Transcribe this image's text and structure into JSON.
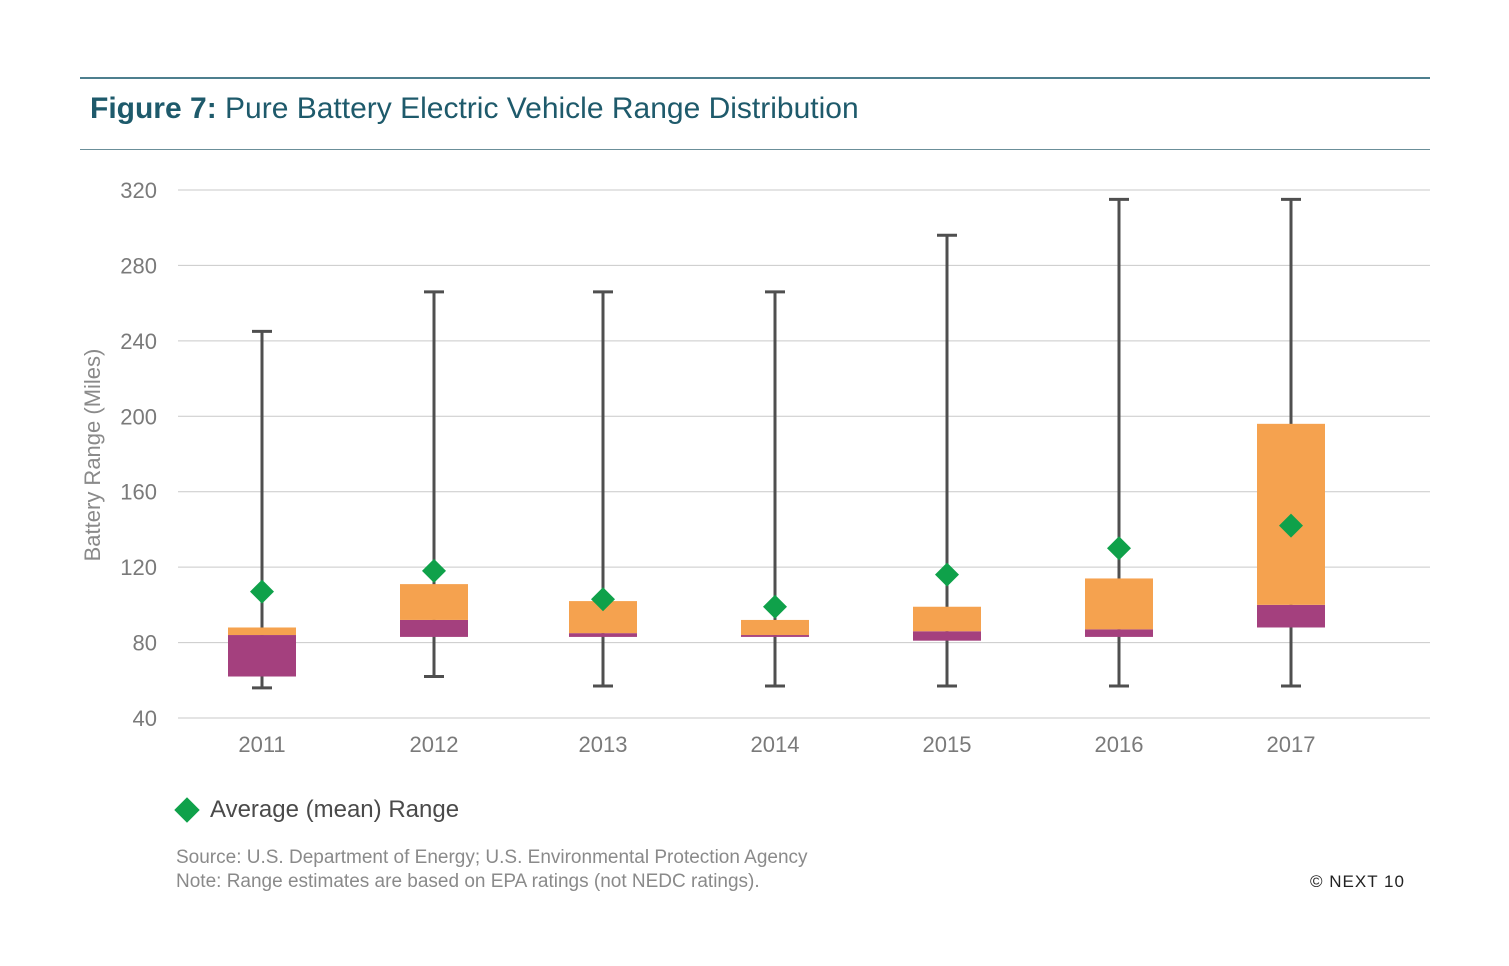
{
  "header": {
    "figure_label": "Figure 7:",
    "figure_title": "Pure Battery Electric Vehicle Range Distribution"
  },
  "legend": {
    "mean_label": "Average (mean) Range"
  },
  "notes": {
    "source": "Source: U.S. Department of Energy; U.S. Environmental Protection Agency",
    "note": "Note: Range estimates are based on EPA ratings (not NEDC ratings)."
  },
  "copyright": "© NEXT 10",
  "colors": {
    "upper_box": "#f5a24f",
    "lower_box": "#a4407e",
    "mean_marker": "#0fa14a",
    "whisker": "#4f4f4f",
    "grid": "#c9c9c9"
  },
  "chart_data": {
    "type": "box",
    "title": "Pure Battery Electric Vehicle Range Distribution",
    "ylabel": "Battery Range (Miles)",
    "xlabel": "",
    "ylim": [
      40,
      320
    ],
    "yticks": [
      40,
      80,
      120,
      160,
      200,
      240,
      280,
      320
    ],
    "grid": true,
    "legend_position": "bottom-left",
    "categories": [
      "2011",
      "2012",
      "2013",
      "2014",
      "2015",
      "2016",
      "2017"
    ],
    "series": [
      {
        "name": "Average (mean) Range",
        "values": [
          107,
          118,
          103,
          99,
          116,
          130,
          142
        ]
      }
    ],
    "boxes": [
      {
        "min": 56,
        "q1": 62,
        "median": 84,
        "q3": 88,
        "max": 245,
        "mean": 107
      },
      {
        "min": 62,
        "q1": 83,
        "median": 92,
        "q3": 111,
        "max": 266,
        "mean": 118
      },
      {
        "min": 57,
        "q1": 83,
        "median": 85,
        "q3": 102,
        "max": 266,
        "mean": 103
      },
      {
        "min": 57,
        "q1": 83,
        "median": 84,
        "q3": 92,
        "max": 266,
        "mean": 99
      },
      {
        "min": 57,
        "q1": 81,
        "median": 86,
        "q3": 99,
        "max": 296,
        "mean": 116
      },
      {
        "min": 57,
        "q1": 83,
        "median": 87,
        "q3": 114,
        "max": 315,
        "mean": 130
      },
      {
        "min": 57,
        "q1": 88,
        "median": 100,
        "q3": 196,
        "max": 315,
        "mean": 142
      }
    ]
  }
}
